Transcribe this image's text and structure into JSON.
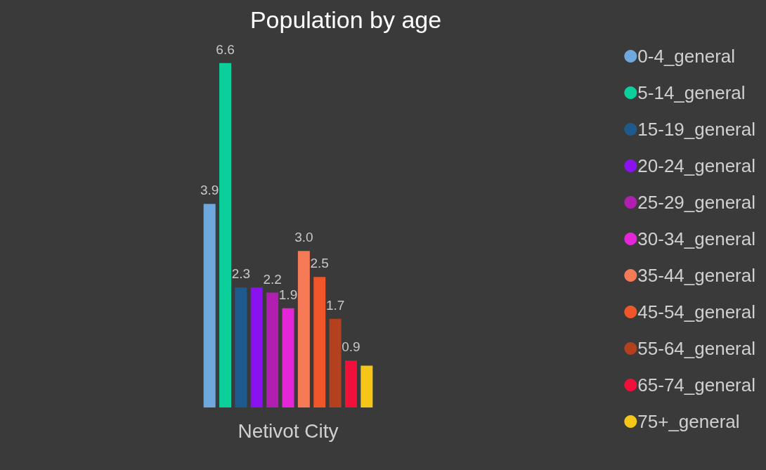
{
  "chart_data": {
    "type": "bar",
    "title": "Population by age",
    "xlabel": "Netivot City",
    "categories": [
      null,
      null,
      null,
      null,
      null,
      null,
      null,
      null,
      null,
      null,
      null
    ],
    "stacked": true,
    "legend": "right",
    "series": [
      {
        "name": "0-4_general",
        "color": "#6fa8dc",
        "values": [
          3.9,
          null,
          null,
          null,
          null,
          null,
          null,
          null,
          null,
          null,
          null
        ],
        "value_labels": [
          "3.9",
          null,
          null,
          null,
          null,
          null,
          null,
          null,
          null,
          null,
          null
        ]
      },
      {
        "name": "5-14_general",
        "color": "#0bd09c",
        "values": [
          null,
          6.6,
          null,
          null,
          null,
          null,
          null,
          null,
          null,
          null,
          null
        ],
        "value_labels": [
          null,
          "6.6",
          null,
          null,
          null,
          null,
          null,
          null,
          null,
          null,
          null
        ]
      },
      {
        "name": "15-19_general",
        "color": "#1f5a8e",
        "values": [
          null,
          null,
          2.3,
          null,
          null,
          null,
          null,
          null,
          null,
          null,
          null
        ],
        "value_labels": [
          null,
          null,
          "2.3",
          null,
          null,
          null,
          null,
          null,
          null,
          null,
          null
        ]
      },
      {
        "name": "20-24_general",
        "color": "#8a12f0",
        "values": [
          null,
          null,
          null,
          2.3,
          null,
          null,
          null,
          null,
          null,
          null,
          null
        ]
      },
      {
        "name": "25-29_general",
        "color": "#b01fb0",
        "values": [
          null,
          null,
          null,
          null,
          2.2,
          null,
          null,
          null,
          null,
          null,
          null
        ],
        "value_labels": [
          null,
          null,
          null,
          null,
          "2.2",
          null,
          null,
          null,
          null,
          null,
          null
        ]
      },
      {
        "name": "30-34_general",
        "color": "#e526d8",
        "values": [
          null,
          null,
          null,
          null,
          null,
          1.9,
          null,
          null,
          null,
          null,
          null
        ],
        "value_labels": [
          null,
          null,
          null,
          null,
          null,
          "1.9",
          null,
          null,
          null,
          null,
          null
        ]
      },
      {
        "name": "35-44_general",
        "color": "#f57a55",
        "values": [
          null,
          null,
          null,
          null,
          null,
          null,
          3.0,
          null,
          null,
          null,
          null
        ],
        "value_labels": [
          null,
          null,
          null,
          null,
          null,
          null,
          "3.0",
          null,
          null,
          null,
          null
        ]
      },
      {
        "name": "45-54_general",
        "color": "#f0562a",
        "values": [
          null,
          null,
          null,
          null,
          null,
          null,
          null,
          2.5,
          null,
          null,
          null
        ],
        "value_labels": [
          null,
          null,
          null,
          null,
          null,
          null,
          null,
          "2.5",
          null,
          null,
          null
        ]
      },
      {
        "name": "55-64_general",
        "color": "#b3401f",
        "values": [
          null,
          null,
          null,
          null,
          null,
          null,
          null,
          null,
          1.7,
          null,
          null
        ],
        "value_labels": [
          null,
          null,
          null,
          null,
          null,
          null,
          null,
          null,
          "1.7",
          null,
          null
        ]
      },
      {
        "name": "65-74_general",
        "color": "#f0103a",
        "values": [
          null,
          null,
          null,
          null,
          null,
          null,
          null,
          null,
          null,
          0.9,
          null
        ],
        "value_labels": [
          null,
          null,
          null,
          null,
          null,
          null,
          null,
          null,
          null,
          "0.9",
          null
        ]
      },
      {
        "name": "75+_general",
        "color": "#f5c518",
        "values": [
          null,
          null,
          null,
          null,
          null,
          null,
          null,
          null,
          null,
          null,
          0.8
        ]
      }
    ]
  }
}
